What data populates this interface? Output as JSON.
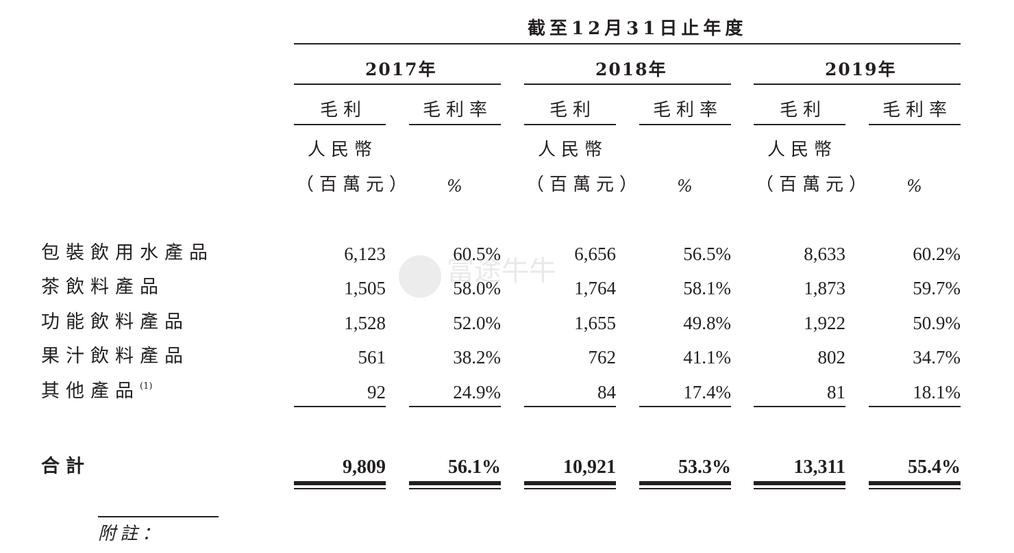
{
  "header": {
    "period_title": "截至12月31日止年度",
    "years": [
      "2017年",
      "2018年",
      "2019年"
    ],
    "gross_profit_label": "毛利",
    "gross_margin_label": "毛利率",
    "currency_line1": "人民幣",
    "currency_line2": "（百萬元）",
    "percent_unit": "%"
  },
  "watermark": {
    "text": "富途牛牛"
  },
  "rows": [
    {
      "label": "包裝飲用水產品",
      "values": [
        "6,123",
        "60.5%",
        "6,656",
        "56.5%",
        "8,633",
        "60.2%"
      ]
    },
    {
      "label": "茶飲料產品",
      "values": [
        "1,505",
        "58.0%",
        "1,764",
        "58.1%",
        "1,873",
        "59.7%"
      ]
    },
    {
      "label": "功能飲料產品",
      "values": [
        "1,528",
        "52.0%",
        "1,655",
        "49.8%",
        "1,922",
        "50.9%"
      ]
    },
    {
      "label": "果汁飲料產品",
      "values": [
        "561",
        "38.2%",
        "762",
        "41.1%",
        "802",
        "34.7%"
      ]
    },
    {
      "label": "其他產品",
      "note": "(1)",
      "values": [
        "92",
        "24.9%",
        "84",
        "17.4%",
        "81",
        "18.1%"
      ]
    }
  ],
  "total": {
    "label": "合計",
    "values": [
      "9,809",
      "56.1%",
      "10,921",
      "53.3%",
      "13,311",
      "55.4%"
    ]
  },
  "footnote": {
    "label": "附註："
  }
}
